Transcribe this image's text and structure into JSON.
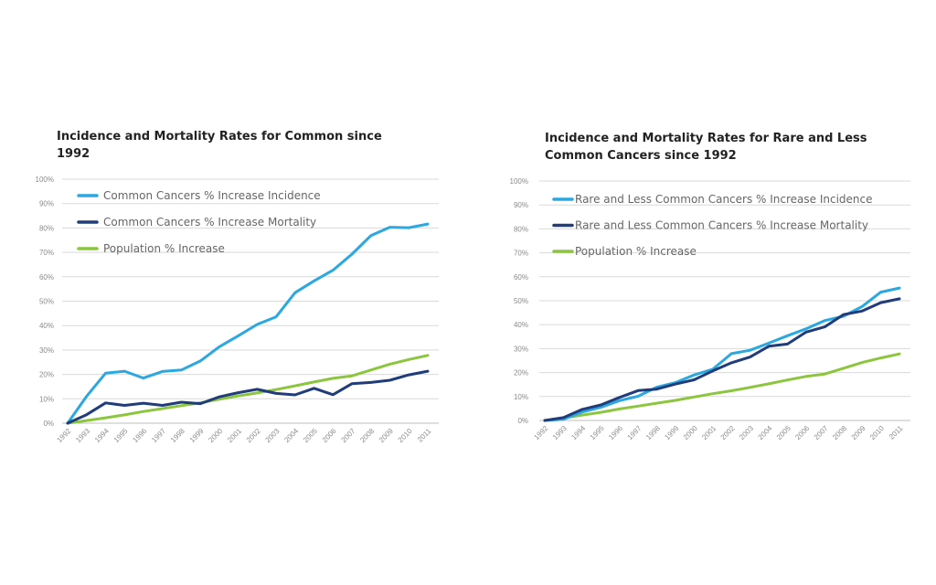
{
  "colors": {
    "incidence": "#2aa8df",
    "mortality": "#203c7a",
    "population": "#8cc63f",
    "grid": "#d9d9d9"
  },
  "chart_data": [
    {
      "type": "line",
      "title": "Incidence and Mortality Rates for Common since 1992",
      "title_lines": [
        "Incidence and Mortality Rates for Common since",
        "1992"
      ],
      "xlabel": "",
      "ylabel": "",
      "ylim": [
        0,
        100
      ],
      "yticks": [
        "0%",
        "10%",
        "20%",
        "30%",
        "40%",
        "50%",
        "60%",
        "70%",
        "80%",
        "90%",
        "100%"
      ],
      "x": [
        "1992",
        "1993",
        "1994",
        "1995",
        "1996",
        "1997",
        "1998",
        "1999",
        "2000",
        "2001",
        "2002",
        "2003",
        "2004",
        "2005",
        "2006",
        "2007",
        "2008",
        "2009",
        "2010",
        "2011"
      ],
      "grid": true,
      "legend": "top-left",
      "series": [
        {
          "name": "Common Cancers % Increase Incidence",
          "color": "incidence",
          "values": [
            0,
            11,
            20.5,
            21.3,
            18.5,
            21.2,
            21.8,
            25.5,
            31.3,
            35.8,
            40.5,
            43.6,
            53.5,
            58.3,
            62.7,
            69.3,
            76.9,
            80.3,
            80.1,
            81.6
          ]
        },
        {
          "name": "Common Cancers % Increase Mortality",
          "color": "mortality",
          "values": [
            0,
            3.5,
            8.3,
            7.3,
            8.2,
            7.3,
            8.6,
            8,
            10.8,
            12.5,
            13.9,
            12.2,
            11.6,
            14.3,
            11.7,
            16.2,
            16.7,
            17.6,
            19.8,
            21.3
          ]
        },
        {
          "name": "Population % Increase",
          "color": "population",
          "values": [
            0,
            1.1,
            2.2,
            3.4,
            4.8,
            6,
            7.2,
            8.4,
            9.8,
            11.2,
            12.4,
            13.8,
            15.3,
            16.9,
            18.4,
            19.4,
            21.8,
            24.2,
            26.1,
            27.8
          ]
        }
      ]
    },
    {
      "type": "line",
      "title": "Incidence and Mortality Rates for Rare and Less Common Cancers since 1992",
      "title_lines": [
        "Incidence and Mortality Rates for Rare and Less",
        "Common Cancers since 1992"
      ],
      "xlabel": "",
      "ylabel": "",
      "ylim": [
        0,
        100
      ],
      "yticks": [
        "0%",
        "10%",
        "20%",
        "30%",
        "40%",
        "50%",
        "60%",
        "70%",
        "80%",
        "90%",
        "100%"
      ],
      "x": [
        "1992",
        "1993",
        "1994",
        "1995",
        "1996",
        "1997",
        "1998",
        "1999",
        "2000",
        "2001",
        "2002",
        "2003",
        "2004",
        "2005",
        "2006",
        "2007",
        "2008",
        "2009",
        "2010",
        "2011"
      ],
      "grid": true,
      "legend": "top-left",
      "series": [
        {
          "name": "Rare and Less Common Cancers % Increase Incidence",
          "color": "incidence",
          "values": [
            0,
            0.5,
            3.5,
            5.5,
            8.3,
            10.1,
            13.9,
            15.8,
            19,
            21.4,
            27.9,
            29.3,
            32.3,
            35.4,
            38.3,
            41.7,
            43.5,
            47.6,
            53.6,
            55.3
          ]
        },
        {
          "name": "Rare and Less Common Cancers % Increase Mortality",
          "color": "mortality",
          "values": [
            0,
            1.2,
            4.6,
            6.5,
            9.6,
            12.5,
            13.1,
            15.2,
            17,
            20.7,
            24.1,
            26.5,
            31,
            31.9,
            36.9,
            39.1,
            44.2,
            45.7,
            49.2,
            50.8
          ]
        },
        {
          "name": "Population % Increase",
          "color": "population",
          "values": [
            0,
            1.1,
            2.2,
            3.4,
            4.8,
            6,
            7.2,
            8.4,
            9.8,
            11.2,
            12.4,
            13.8,
            15.3,
            16.9,
            18.4,
            19.4,
            21.8,
            24.2,
            26.1,
            27.8
          ]
        }
      ]
    }
  ]
}
